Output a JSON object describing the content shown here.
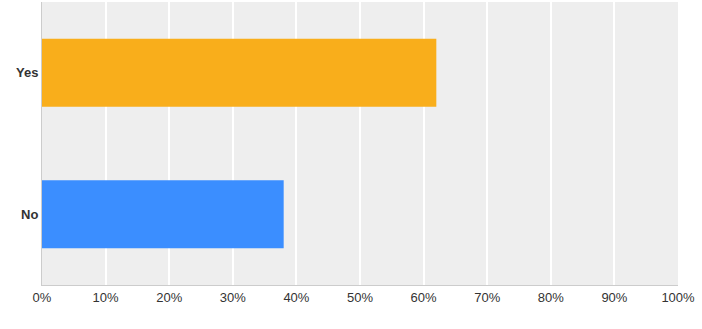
{
  "chart_data": {
    "type": "bar",
    "orientation": "horizontal",
    "categories": [
      "Yes",
      "No"
    ],
    "values": [
      62,
      38
    ],
    "colors": [
      "#f9ae1b",
      "#3b8eff"
    ],
    "xlim": [
      0,
      100
    ],
    "xticks": [
      {
        "value": 0,
        "label": "0%"
      },
      {
        "value": 10,
        "label": "10%"
      },
      {
        "value": 20,
        "label": "20%"
      },
      {
        "value": 30,
        "label": "30%"
      },
      {
        "value": 40,
        "label": "40%"
      },
      {
        "value": 50,
        "label": "50%"
      },
      {
        "value": 60,
        "label": "60%"
      },
      {
        "value": 70,
        "label": "70%"
      },
      {
        "value": 80,
        "label": "80%"
      },
      {
        "value": 90,
        "label": "90%"
      },
      {
        "value": 100,
        "label": "100%"
      }
    ],
    "grid": true
  }
}
